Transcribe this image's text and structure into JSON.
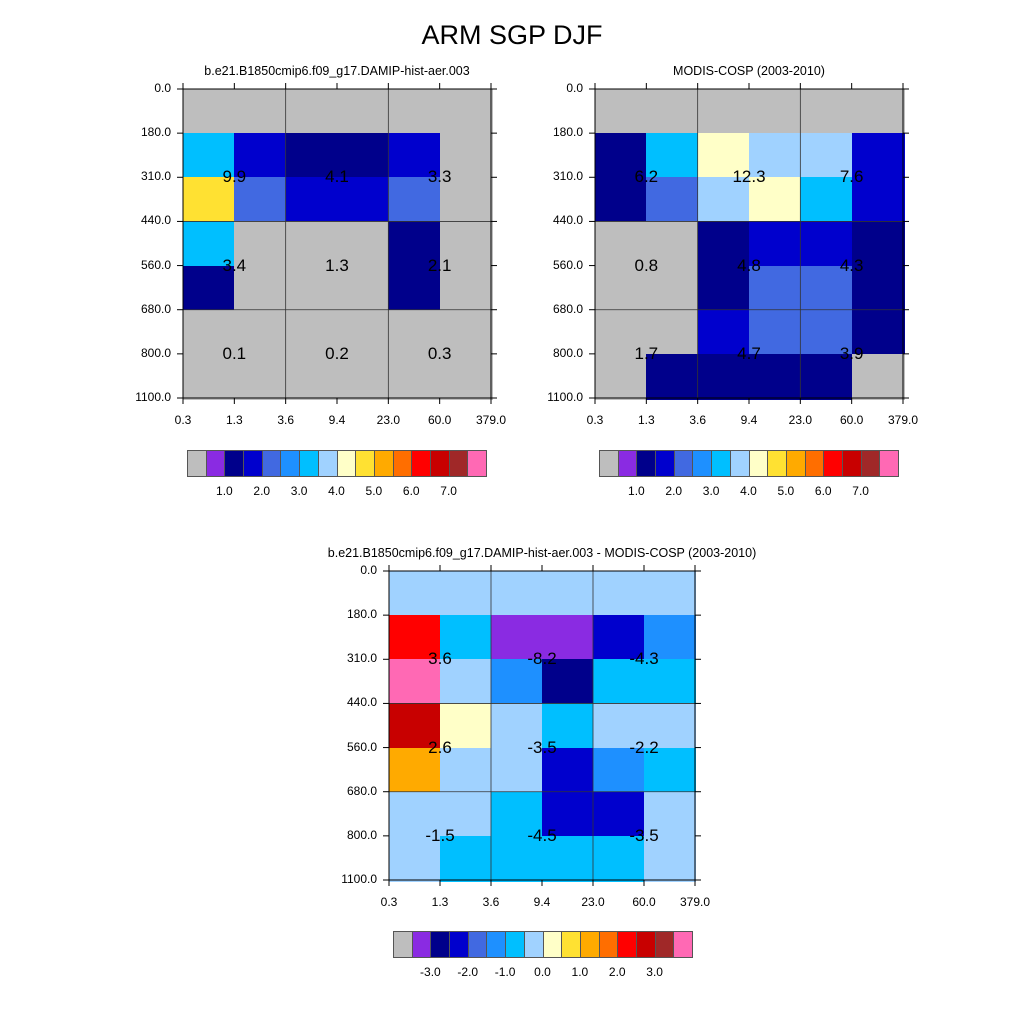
{
  "title": "ARM SGP DJF",
  "chart_data": [
    {
      "type": "heatmap",
      "title": "b.e21.B1850cmip6.f09_g17.DAMIP-hist-aer.003",
      "x_edges": [
        "0.3",
        "1.3",
        "3.6",
        "9.4",
        "23.0",
        "60.0",
        "379.0"
      ],
      "y_edges": [
        "0.0",
        "180.0",
        "310.0",
        "440.0",
        "560.0",
        "680.0",
        "800.0",
        "1100.0"
      ],
      "cell_values": [
        [
          -1,
          -1,
          -1,
          -1,
          -1,
          -1
        ],
        [
          2.75,
          1.25,
          0.5,
          0.5,
          1.25,
          -1
        ],
        [
          4.25,
          1.75,
          1.25,
          1.25,
          1.75,
          -1
        ],
        [
          2.75,
          -1,
          -1,
          -1,
          0.5,
          -1
        ],
        [
          0.5,
          -1,
          -1,
          -1,
          0.5,
          -1
        ],
        [
          -1,
          -1,
          -1,
          -1,
          -1,
          -1
        ],
        [
          -1,
          -1,
          -1,
          -1,
          -1,
          -1
        ]
      ],
      "box_labels": [
        [
          "9.9",
          "4.1",
          "3.3"
        ],
        [
          "3.4",
          "1.3",
          "2.1"
        ],
        [
          "0.1",
          "0.2",
          "0.3"
        ]
      ]
    },
    {
      "type": "heatmap",
      "title": "MODIS-COSP (2003-2010)",
      "x_edges": [
        "0.3",
        "1.3",
        "3.6",
        "9.4",
        "23.0",
        "60.0",
        "379.0"
      ],
      "y_edges": [
        "0.0",
        "180.0",
        "310.0",
        "440.0",
        "560.0",
        "680.0",
        "800.0",
        "1100.0"
      ],
      "cell_values": [
        [
          -1,
          -1,
          -1,
          -1,
          -1,
          -1
        ],
        [
          0.5,
          2.75,
          3.75,
          3.25,
          3.25,
          1.25
        ],
        [
          0.5,
          1.75,
          3.25,
          3.75,
          2.75,
          1.25
        ],
        [
          -1,
          -1,
          0.5,
          1.25,
          1.25,
          0.5
        ],
        [
          -1,
          -1,
          0.5,
          1.75,
          1.75,
          0.5
        ],
        [
          -1,
          -1,
          1.25,
          1.75,
          1.75,
          0.5
        ],
        [
          -1,
          0.5,
          0.5,
          0.5,
          0.5,
          -1
        ]
      ],
      "box_labels": [
        [
          "6.2",
          "12.3",
          "7.6"
        ],
        [
          "0.8",
          "4.8",
          "4.3"
        ],
        [
          "1.7",
          "4.7",
          "3.9"
        ]
      ]
    },
    {
      "type": "heatmap",
      "title": "b.e21.B1850cmip6.f09_g17.DAMIP-hist-aer.003 - MODIS-COSP (2003-2010)",
      "x_edges": [
        "0.3",
        "1.3",
        "3.6",
        "9.4",
        "23.0",
        "60.0",
        "379.0"
      ],
      "y_edges": [
        "0.0",
        "180.0",
        "310.0",
        "440.0",
        "560.0",
        "680.0",
        "800.0",
        "1100.0"
      ],
      "cell_values": [
        [
          -0.25,
          -0.25,
          -0.25,
          -0.25,
          -0.25,
          -0.25
        ],
        [
          2.25,
          -0.75,
          -3.25,
          -3.25,
          -2.25,
          -1.25
        ],
        [
          3.75,
          -0.25,
          -1.25,
          -2.75,
          -0.75,
          -0.75
        ],
        [
          2.75,
          0.25,
          -0.25,
          -0.75,
          -0.25,
          -0.25
        ],
        [
          1.25,
          -0.25,
          -0.25,
          -2.25,
          -1.25,
          -0.75
        ],
        [
          -0.25,
          -0.25,
          -0.75,
          -2.25,
          -2.25,
          -0.25
        ],
        [
          -0.25,
          -0.75,
          -0.75,
          -0.75,
          -0.75,
          -0.25
        ]
      ],
      "box_labels": [
        [
          "3.6",
          "-8.2",
          "-4.3"
        ],
        [
          "2.6",
          "-3.5",
          "-2.2"
        ],
        [
          "-1.5",
          "-4.5",
          "-3.5"
        ]
      ]
    }
  ],
  "colorbars": [
    {
      "colors": [
        "#bebebe",
        "#8a2be2",
        "#00008b",
        "#0000cd",
        "#4169e1",
        "#1e90ff",
        "#00bfff",
        "#a0d2ff",
        "#ffffc8",
        "#ffe132",
        "#ffaa00",
        "#ff6e00",
        "#ff0000",
        "#c80000",
        "#a02828",
        "#ff69b4"
      ],
      "labels": [
        "1.0",
        "2.0",
        "3.0",
        "4.0",
        "5.0",
        "6.0",
        "7.0"
      ]
    },
    {
      "colors": [
        "#bebebe",
        "#8a2be2",
        "#00008b",
        "#0000cd",
        "#4169e1",
        "#1e90ff",
        "#00bfff",
        "#a0d2ff",
        "#ffffc8",
        "#ffe132",
        "#ffaa00",
        "#ff6e00",
        "#ff0000",
        "#c80000",
        "#a02828",
        "#ff69b4"
      ],
      "labels": [
        "1.0",
        "2.0",
        "3.0",
        "4.0",
        "5.0",
        "6.0",
        "7.0"
      ]
    },
    {
      "colors": [
        "#bebebe",
        "#8a2be2",
        "#00008b",
        "#0000cd",
        "#4169e1",
        "#1e90ff",
        "#00bfff",
        "#a0d2ff",
        "#ffffc8",
        "#ffe132",
        "#ffaa00",
        "#ff6e00",
        "#ff0000",
        "#c80000",
        "#a02828",
        "#ff69b4"
      ],
      "labels": [
        "-3.0",
        "-2.0",
        "-1.0",
        "0.0",
        "1.0",
        "2.0",
        "3.0"
      ]
    }
  ]
}
